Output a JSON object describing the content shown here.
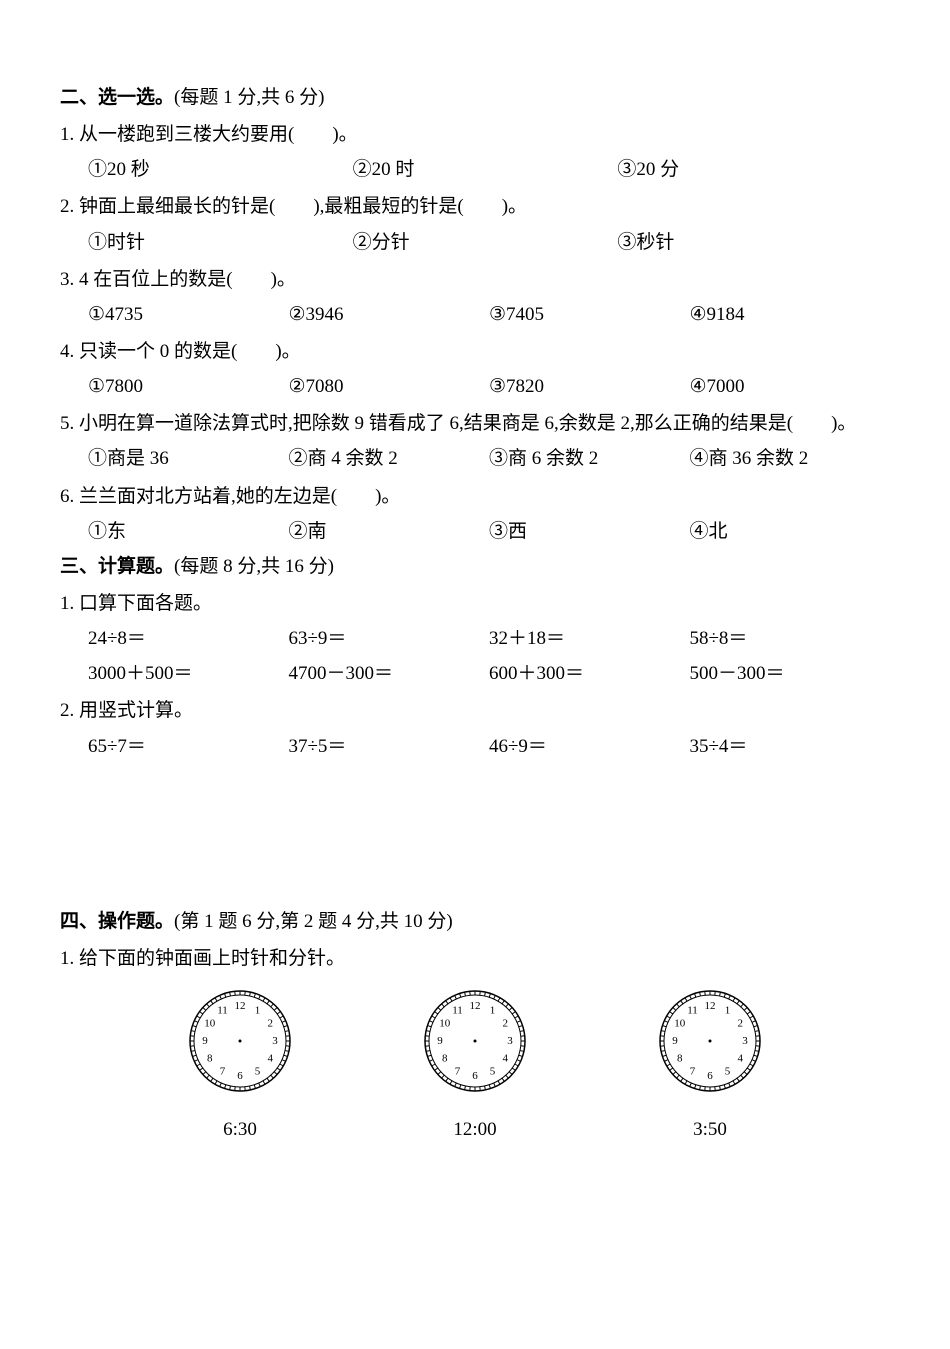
{
  "colors": {
    "text": "#000000",
    "background": "#ffffff",
    "clock_stroke": "#000000",
    "clock_fill": "#ffffff"
  },
  "typography": {
    "body_fontsize_pt": 14,
    "title_weight": "bold"
  },
  "section2": {
    "title": "二、选一选。",
    "subtitle": "(每题 1 分,共 6 分)",
    "q1": {
      "num": "1.",
      "text": "从一楼跑到三楼大约要用(　　)。",
      "opts": [
        "①20 秒",
        "②20 时",
        "③20 分"
      ]
    },
    "q2": {
      "num": "2.",
      "text": "钟面上最细最长的针是(　　),最粗最短的针是(　　)。",
      "opts": [
        "①时针",
        "②分针",
        "③秒针"
      ]
    },
    "q3": {
      "num": "3.",
      "text": "4 在百位上的数是(　　)。",
      "opts": [
        "①4735",
        "②3946",
        "③7405",
        "④9184"
      ]
    },
    "q4": {
      "num": "4.",
      "text": "只读一个 0 的数是(　　)。",
      "opts": [
        "①7800",
        "②7080",
        "③7820",
        "④7000"
      ]
    },
    "q5": {
      "num": "5.",
      "text": "小明在算一道除法算式时,把除数 9 错看成了 6,结果商是 6,余数是 2,那么正确的结果是(　　)。",
      "opts": [
        "①商是 36",
        "②商 4 余数 2",
        "③商 6 余数 2",
        "④商 36 余数 2"
      ]
    },
    "q6": {
      "num": "6.",
      "text": "兰兰面对北方站着,她的左边是(　　)。",
      "opts": [
        "①东",
        "②南",
        "③西",
        "④北"
      ]
    }
  },
  "section3": {
    "title": "三、计算题。",
    "subtitle": "(每题 8 分,共 16 分)",
    "q1": {
      "num": "1.",
      "text": "口算下面各题。",
      "row1": [
        "24÷8＝",
        "63÷9＝",
        "32＋18＝",
        "58÷8＝"
      ],
      "row2": [
        "3000＋500＝",
        "4700－300＝",
        "600＋300＝",
        "500－300＝"
      ]
    },
    "q2": {
      "num": "2.",
      "text": "用竖式计算。",
      "row1": [
        "65÷7＝",
        "37÷5＝",
        "46÷9＝",
        "35÷4＝"
      ]
    }
  },
  "section4": {
    "title": "四、操作题。",
    "subtitle": "(第 1 题 6 分,第 2 题 4 分,共 10 分)",
    "q1": {
      "num": "1.",
      "text": "给下面的钟面画上时针和分针。",
      "clocks": [
        "6:30",
        "12:00",
        "3:50"
      ]
    }
  },
  "clock": {
    "size": 110,
    "outer_r": 50,
    "inner_rim_r": 46,
    "num_r": 35,
    "dash_outer": 50,
    "dash_inner": 46,
    "center_dot_r": 1.5,
    "numerals": [
      "12",
      "1",
      "2",
      "3",
      "4",
      "5",
      "6",
      "7",
      "8",
      "9",
      "10",
      "11"
    ],
    "num_fontsize": 11
  }
}
